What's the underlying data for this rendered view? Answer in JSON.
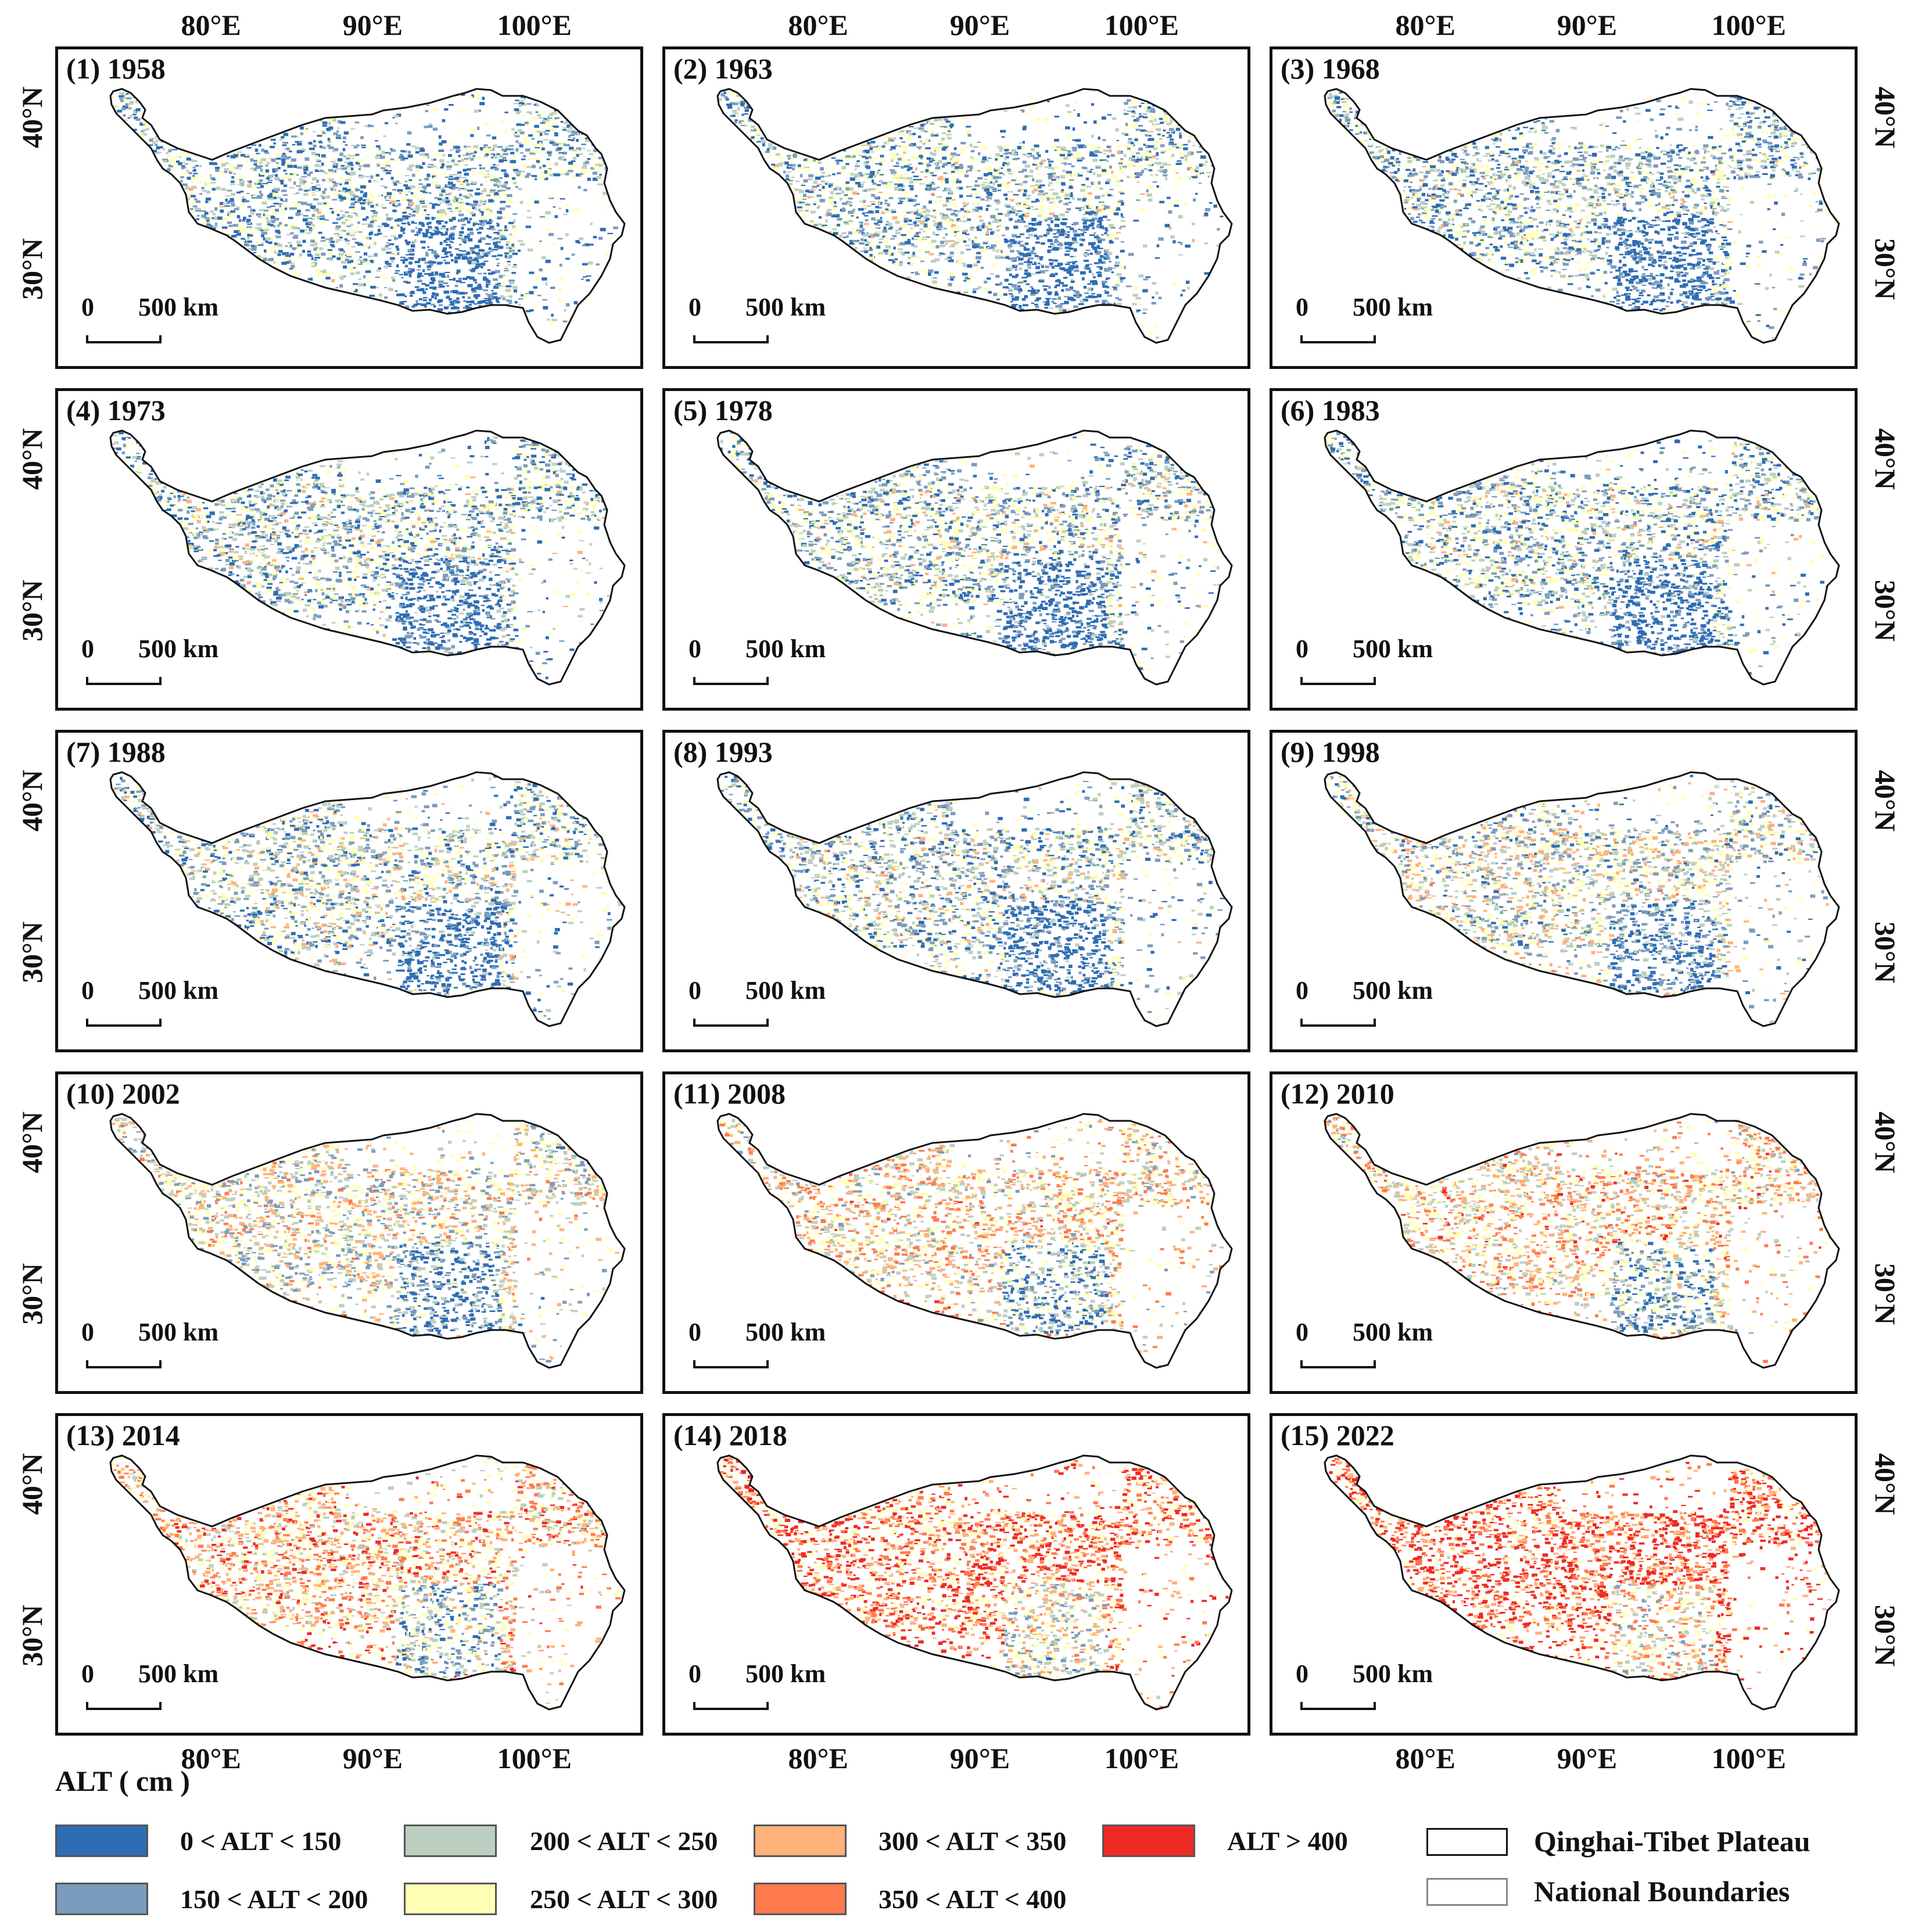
{
  "panels": [
    {
      "label": "(1) 1958",
      "warm": 0.0
    },
    {
      "label": "(2) 1963",
      "warm": 0.04
    },
    {
      "label": "(3) 1968",
      "warm": 0.03
    },
    {
      "label": "(4) 1973",
      "warm": 0.06
    },
    {
      "label": "(5) 1978",
      "warm": 0.08
    },
    {
      "label": "(6) 1983",
      "warm": 0.07
    },
    {
      "label": "(7) 1988",
      "warm": 0.12
    },
    {
      "label": "(8) 1993",
      "warm": 0.11
    },
    {
      "label": "(9) 1998",
      "warm": 0.22
    },
    {
      "label": "(10) 2002",
      "warm": 0.3
    },
    {
      "label": "(11) 2008",
      "warm": 0.45
    },
    {
      "label": "(12) 2010",
      "warm": 0.5
    },
    {
      "label": "(13) 2014",
      "warm": 0.58
    },
    {
      "label": "(14) 2018",
      "warm": 0.78
    },
    {
      "label": "(15) 2022",
      "warm": 0.88
    }
  ],
  "scale": {
    "zero": "0",
    "label": "500 km"
  },
  "lon_labels": [
    "80°E",
    "90°E",
    "100°E"
  ],
  "lat_labels": [
    "40°N",
    "30°N"
  ],
  "legend": {
    "title": "ALT ( cm )",
    "classes": [
      {
        "label": "0 < ALT < 150",
        "color": "#2e6db4"
      },
      {
        "label": "150 < ALT < 200",
        "color": "#7b9cbd"
      },
      {
        "label": "200 < ALT < 250",
        "color": "#bdcfc0"
      },
      {
        "label": "250 < ALT < 300",
        "color": "#ffffb5"
      },
      {
        "label": "300 < ALT < 350",
        "color": "#ffb27a"
      },
      {
        "label": "350 < ALT < 400",
        "color": "#ff7a4c"
      },
      {
        "label": "ALT > 400",
        "color": "#ee2a24"
      }
    ],
    "boundaries": [
      {
        "label": "Qinghai-Tibet Plateau"
      },
      {
        "label": "National Boundaries"
      }
    ]
  }
}
